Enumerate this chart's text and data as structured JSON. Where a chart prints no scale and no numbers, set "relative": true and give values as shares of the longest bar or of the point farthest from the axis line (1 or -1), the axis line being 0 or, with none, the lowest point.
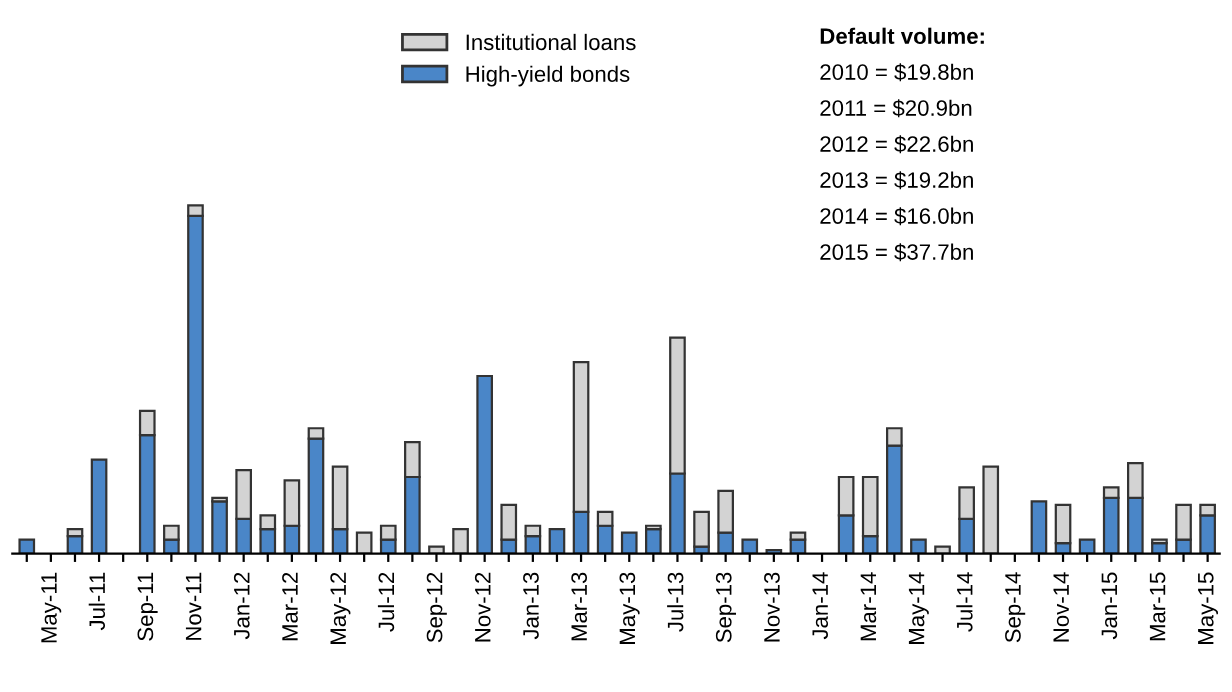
{
  "chart_data": {
    "type": "bar",
    "relative": true,
    "stacked": true,
    "legend": "top",
    "grid": false,
    "categories": [
      null,
      "May-11",
      null,
      "Jul-11",
      null,
      "Sep-11",
      null,
      "Nov-11",
      null,
      "Jan-12",
      null,
      "Mar-12",
      null,
      "May-12",
      null,
      "Jul-12",
      null,
      "Sep-12",
      null,
      "Nov-12",
      null,
      "Jan-13",
      null,
      "Mar-13",
      null,
      "May-13",
      null,
      "Jul-13",
      null,
      "Sep-13",
      null,
      "Nov-13",
      null,
      "Jan-14",
      null,
      "Mar-14",
      null,
      "May-14",
      null,
      "Jul-14",
      null,
      "Sep-14",
      null,
      "Nov-14",
      null,
      "Jan-15",
      null,
      "Mar-15",
      null,
      "May-15"
    ],
    "series": [
      {
        "name": "High-yield bonds",
        "color": "#4a86c8",
        "values": [
          0.04,
          0,
          0.05,
          0.27,
          0,
          0.34,
          0.04,
          0.97,
          0.15,
          0.1,
          0.07,
          0.08,
          0.33,
          0.07,
          0,
          0.04,
          0.22,
          0,
          0,
          0.51,
          0.04,
          0.05,
          0.07,
          0.12,
          0.08,
          0.06,
          0.07,
          0.23,
          0.02,
          0.06,
          0.04,
          0.01,
          0.04,
          0,
          0.11,
          0.05,
          0.31,
          0.04,
          0,
          0.1,
          0,
          0,
          0.15,
          0.03,
          0.04,
          0.16,
          0.16,
          0.03,
          0.04,
          0.11
        ]
      },
      {
        "name": "Institutional loans",
        "color": "#d3d3d3",
        "values": [
          0,
          0,
          0.02,
          0,
          0,
          0.07,
          0.04,
          0.03,
          0.01,
          0.14,
          0.04,
          0.13,
          0.03,
          0.18,
          0.06,
          0.04,
          0.1,
          0.02,
          0.07,
          0,
          0.1,
          0.03,
          0,
          0.43,
          0.04,
          0,
          0.01,
          0.39,
          0.1,
          0.12,
          0,
          0,
          0.02,
          0,
          0.11,
          0.17,
          0.05,
          0,
          0.02,
          0.09,
          0.25,
          0,
          0,
          0.11,
          0,
          0.03,
          0.1,
          0.01,
          0.1,
          0.03
        ]
      }
    ],
    "annotations": [
      "Default volume:",
      "2010 = $19.8bn",
      "2011 = $20.9bn",
      "2012 = $22.6bn",
      "2013 = $19.2bn",
      "2014 = $16.0bn",
      "2015 = $37.7bn"
    ]
  }
}
